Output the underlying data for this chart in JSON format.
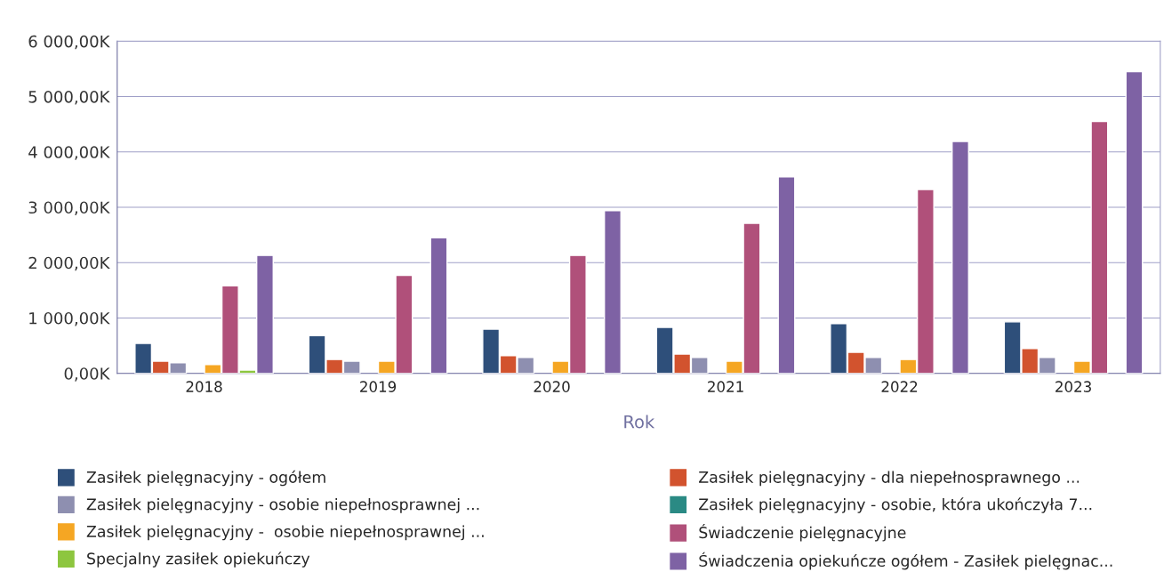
{
  "chart_data": {
    "type": "bar",
    "xlabel": "Rok",
    "categories": [
      "2018",
      "2019",
      "2020",
      "2021",
      "2022",
      "2023"
    ],
    "series": [
      {
        "name": "Zasiłek pielęgnacyjny - ogółem",
        "color": "#2e4f7a",
        "values": [
          540,
          680,
          800,
          830,
          900,
          930
        ]
      },
      {
        "name": "Zasiłek pielęgnacyjny - dla niepełnosprawnego ...",
        "color": "#d2532e",
        "values": [
          220,
          250,
          320,
          350,
          380,
          450
        ]
      },
      {
        "name": "Zasiłek pielęgnacyjny - osobie niepełnosprawnej ...",
        "color": "#8e8fb0",
        "values": [
          190,
          220,
          290,
          290,
          290,
          290
        ]
      },
      {
        "name": "Zasiłek pielęgnacyjny - osobie, która ukończyła 7...",
        "color": "#2a8a84",
        "values": [
          null,
          null,
          null,
          null,
          null,
          null
        ]
      },
      {
        "name": "Zasiłek pielęgnacyjny -  osobie niepełnosprawnej ...",
        "color": "#f5a623",
        "values": [
          160,
          220,
          220,
          220,
          250,
          220
        ]
      },
      {
        "name": "Świadczenie pielęgnacyjne",
        "color": "#b0507a",
        "values": [
          1580,
          1770,
          2130,
          2710,
          3320,
          4550
        ]
      },
      {
        "name": "Specjalny zasiłek opiekuńczy",
        "color": "#8dc63f",
        "values": [
          60,
          null,
          null,
          null,
          null,
          null
        ]
      },
      {
        "name": "Świadczenia opiekuńcze ogółem - Zasiłek pielęgnac...",
        "color": "#7e62a4",
        "values": [
          2130,
          2450,
          2940,
          3550,
          4190,
          5450
        ]
      }
    ],
    "ylim": [
      0,
      6000
    ],
    "yticks": [
      {
        "value": 0,
        "label": "0,00K"
      },
      {
        "value": 1000,
        "label": "1 000,00K"
      },
      {
        "value": 2000,
        "label": "2 000,00K"
      },
      {
        "value": 3000,
        "label": "3 000,00K"
      },
      {
        "value": 4000,
        "label": "4 000,00K"
      },
      {
        "value": 5000,
        "label": "5 000,00K"
      },
      {
        "value": 6000,
        "label": "6 000,00K"
      }
    ],
    "grid": "y",
    "legend": "bottom"
  }
}
